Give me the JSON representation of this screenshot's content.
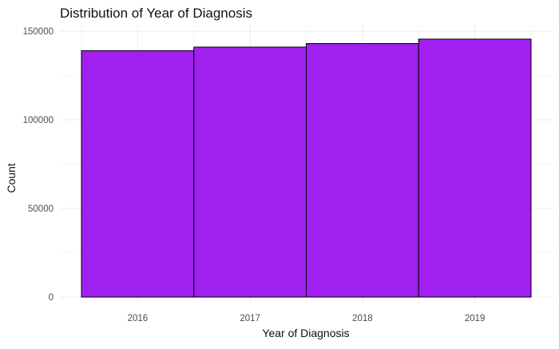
{
  "chart_data": {
    "type": "bar",
    "title": "Distribution of Year of Diagnosis",
    "xlabel": "Year of Diagnosis",
    "ylabel": "Count",
    "categories": [
      "2016",
      "2017",
      "2018",
      "2019"
    ],
    "values": [
      139000,
      141000,
      143000,
      145500
    ],
    "ylim": [
      0,
      150000
    ],
    "yticks": [
      0,
      50000,
      100000,
      150000
    ],
    "ytick_labels": [
      "0",
      "50000",
      "100000",
      "150000"
    ],
    "grid": true,
    "legend": "none",
    "colors": {
      "bar_fill": "#A020F0",
      "bar_outline": "#000000"
    }
  }
}
